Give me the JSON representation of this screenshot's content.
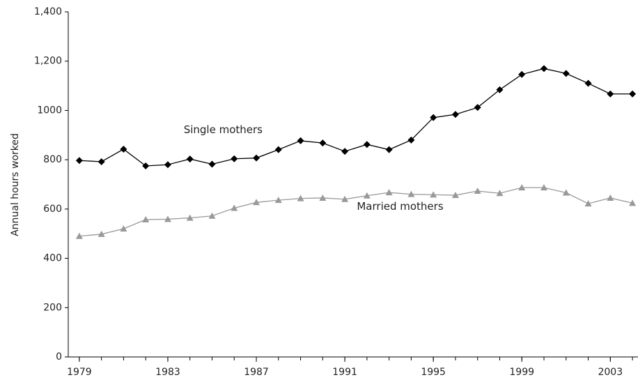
{
  "chart_data": {
    "type": "line",
    "y_label": "Annual hours worked",
    "x": [
      1979,
      1980,
      1981,
      1982,
      1983,
      1984,
      1985,
      1986,
      1987,
      1988,
      1989,
      1990,
      1991,
      1992,
      1993,
      1994,
      1995,
      1996,
      1997,
      1998,
      1999,
      2000,
      2001,
      2002,
      2003,
      2004
    ],
    "series": [
      {
        "name": "Single mothers",
        "color": "#000000",
        "marker": "diamond",
        "values": [
          797,
          792,
          843,
          775,
          780,
          803,
          782,
          804,
          807,
          841,
          877,
          868,
          834,
          862,
          841,
          880,
          971,
          984,
          1012,
          1084,
          1146,
          1170,
          1150,
          1110,
          1067,
          1067
        ]
      },
      {
        "name": "Married mothers",
        "color": "#999999",
        "marker": "triangle",
        "values": [
          490,
          498,
          520,
          557,
          559,
          564,
          572,
          604,
          627,
          636,
          643,
          645,
          640,
          654,
          667,
          660,
          658,
          656,
          673,
          664,
          687,
          687,
          666,
          622,
          645,
          624
        ]
      }
    ],
    "annotations": [
      {
        "text": "Single mothers",
        "x": 1985.5,
        "y": 920
      },
      {
        "text": "Married mothers",
        "x": 1993.5,
        "y": 610
      }
    ],
    "xlim": [
      1978.5,
      2004.25
    ],
    "xticks": [
      1979,
      1983,
      1987,
      1991,
      1995,
      1999,
      2003
    ],
    "ylim": [
      0,
      1400
    ],
    "yticks": [
      0,
      200,
      400,
      600,
      800,
      1000,
      {
        "value": 1200,
        "label": "1,200"
      },
      {
        "value": 1400,
        "label": "1,400"
      }
    ]
  }
}
